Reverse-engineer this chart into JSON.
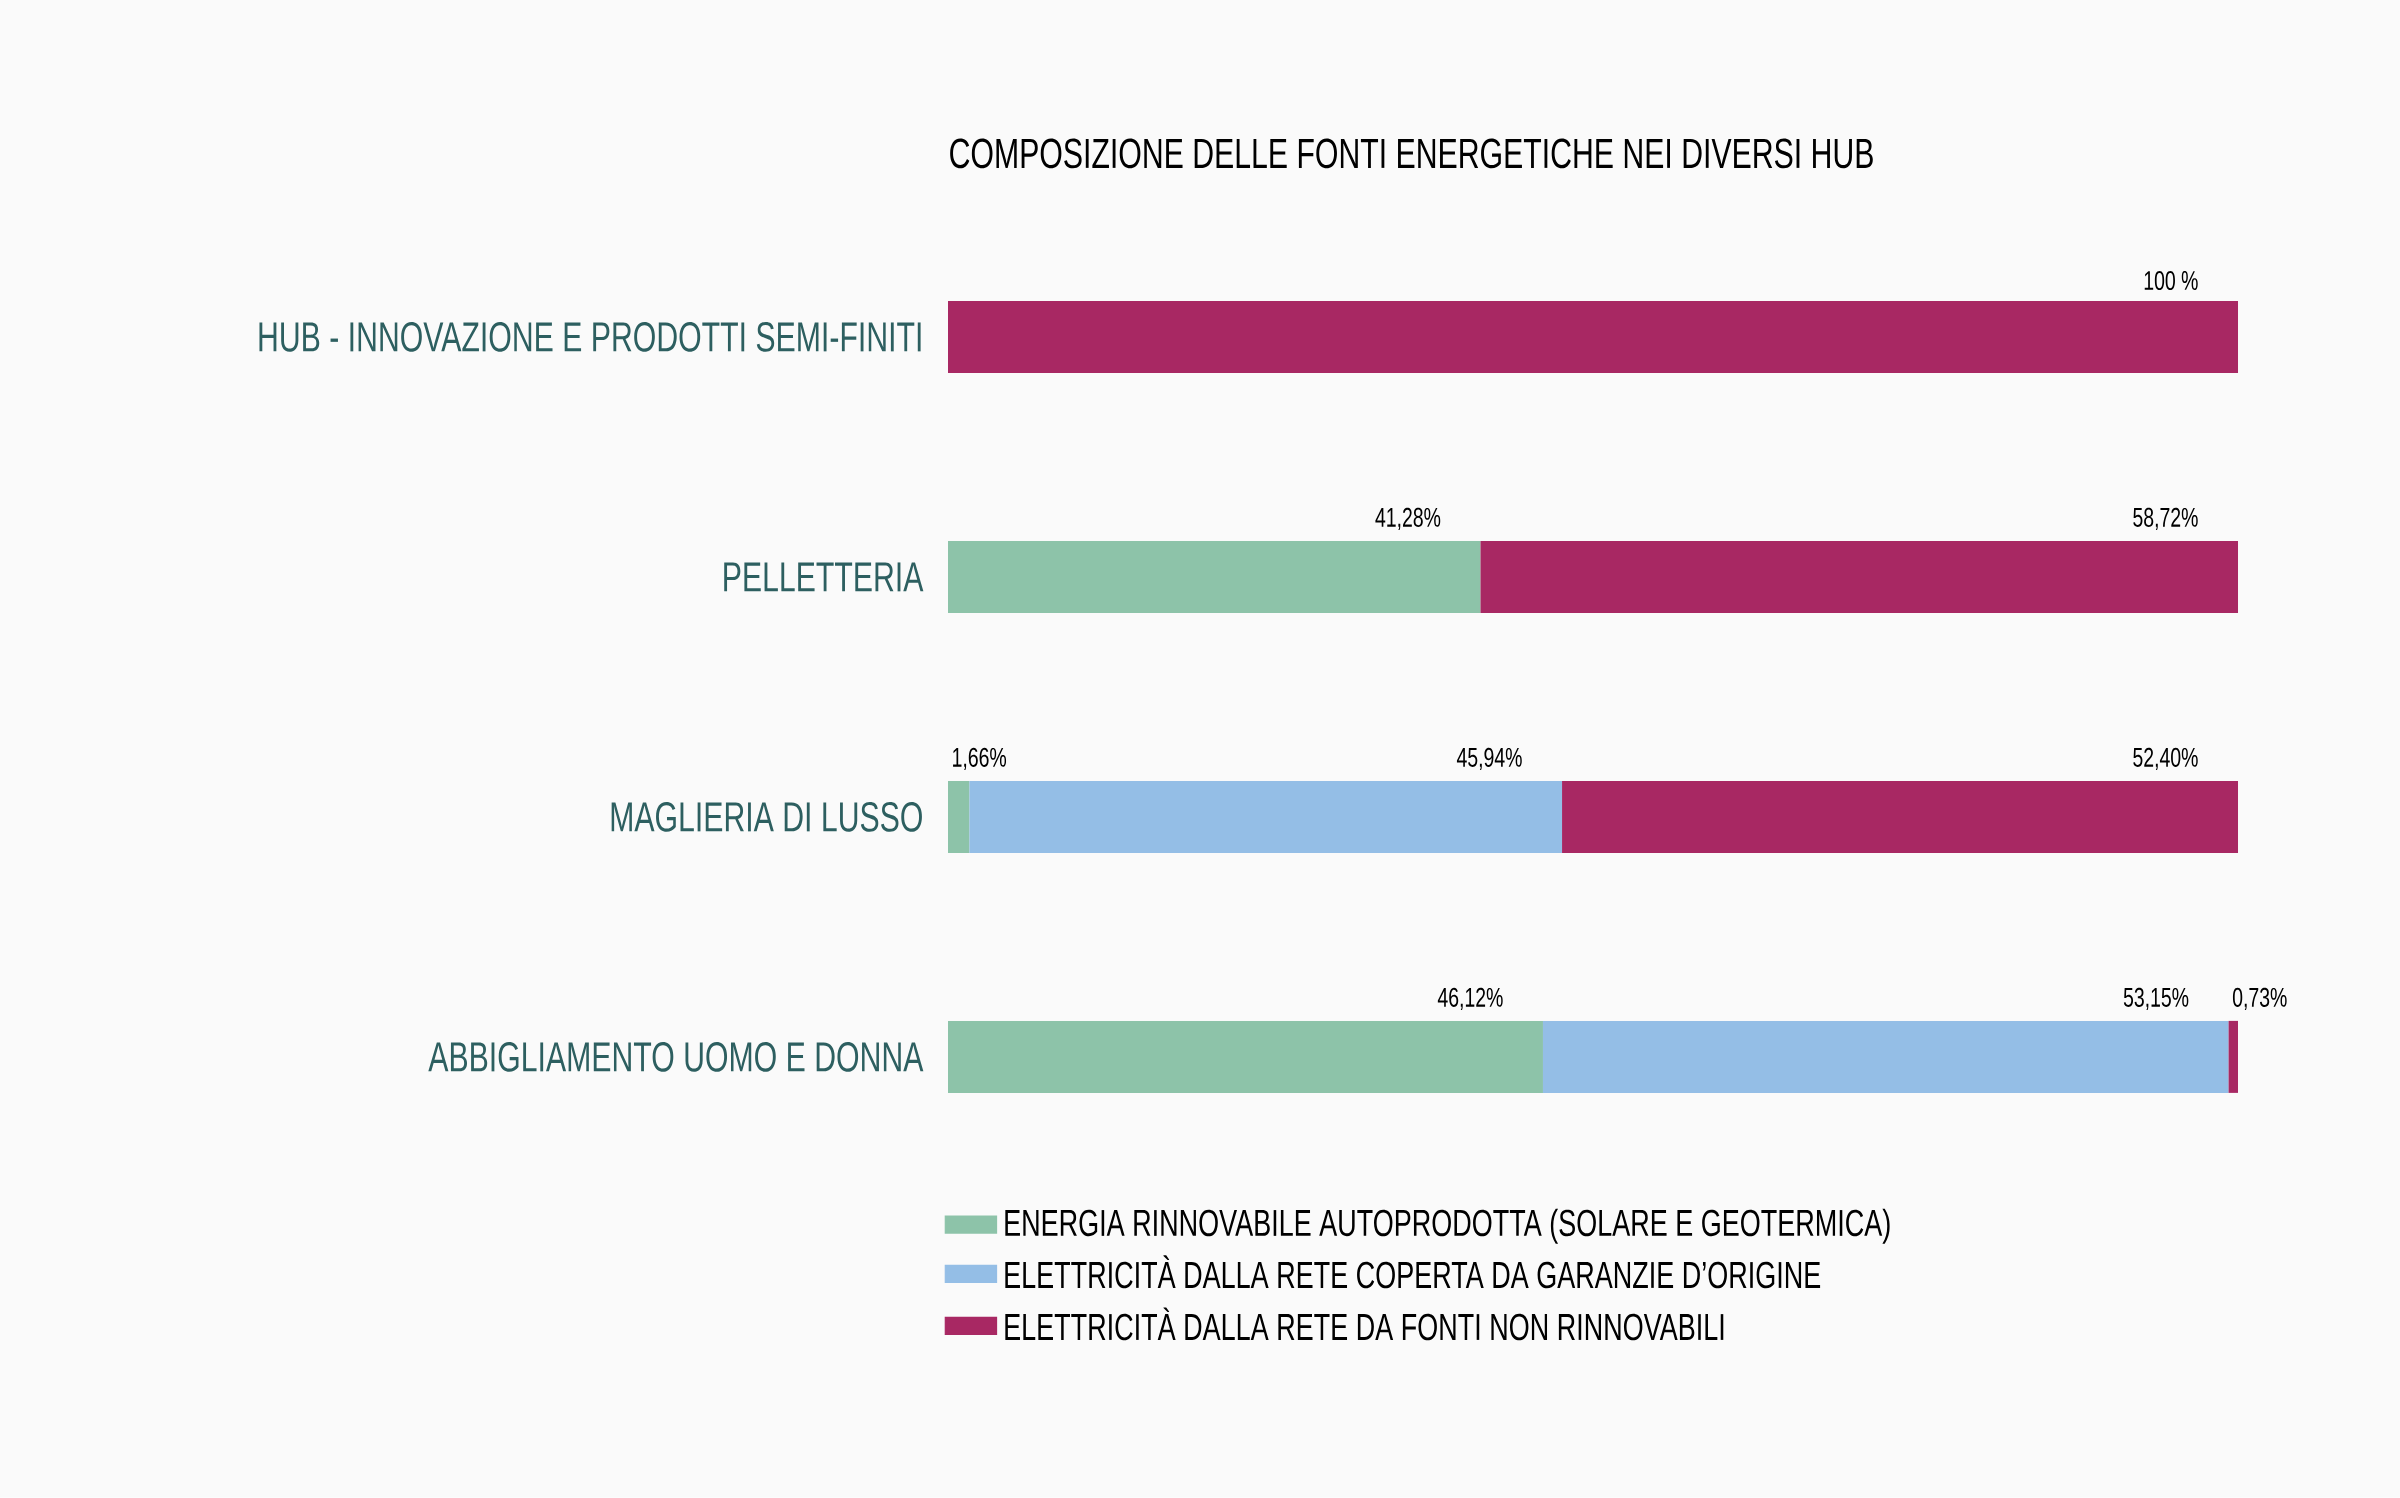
{
  "chart_data": {
    "type": "bar",
    "orientation": "horizontal",
    "stacked": true,
    "title": "COMPOSIZIONE DELLE FONTI ENERGETICHE NEI DIVERSI HUB",
    "categories": [
      "HUB - INNOVAZIONE E PRODOTTI SEMI-FINITI",
      "PELLETTERIA",
      "MAGLIERIA DI LUSSO",
      "ABBIGLIAMENTO UOMO E DONNA"
    ],
    "legend": "bottom",
    "series": [
      {
        "name": "ENERGIA RINNOVABILE AUTOPRODOTTA (SOLARE E GEOTERMICA)",
        "color": "#8dc3a9",
        "values": [
          null,
          41.28,
          1.66,
          46.12
        ],
        "value_labels": [
          null,
          "41,28%",
          "1,66%",
          "46,12%"
        ]
      },
      {
        "name": "ELETTRICITÀ DALLA RETE COPERTA DA GARANZIE D’ORIGINE",
        "color": "#94bee6",
        "values": [
          null,
          null,
          45.94,
          53.15
        ],
        "value_labels": [
          null,
          null,
          "45,94%",
          "53,15%"
        ]
      },
      {
        "name": "ELETTRICITÀ DALLA RETE DA FONTI NON RINNOVABILI",
        "color": "#a82863",
        "values": [
          100,
          58.72,
          52.4,
          0.73
        ],
        "value_labels": [
          "100 %",
          "58,72%",
          "52,40%",
          "0,73%"
        ]
      }
    ]
  }
}
